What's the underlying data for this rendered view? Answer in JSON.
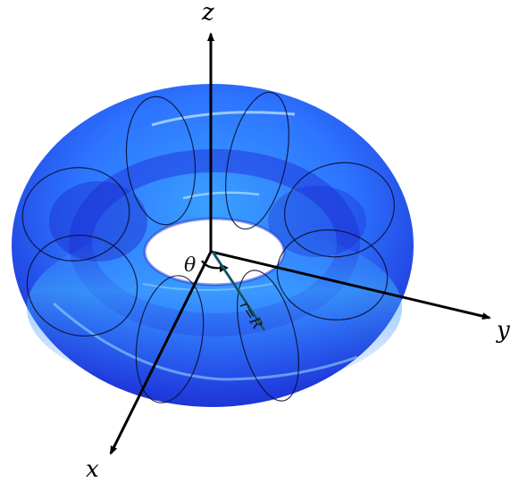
{
  "diagram": {
    "axes": {
      "z_label": "z",
      "y_label": "y",
      "x_label": "x"
    },
    "annotations": {
      "theta_label": "θ",
      "radius_label": "r=R"
    },
    "colors": {
      "torus_dark": "#1f2fd9",
      "torus_mid": "#2f6bff",
      "torus_light": "#3fa6ff",
      "highlight": "#b9e8ff",
      "meridian": "#0a0a2a",
      "axis": "#000000",
      "radius_line": "#1e6f87"
    },
    "meridian_count": 10
  }
}
